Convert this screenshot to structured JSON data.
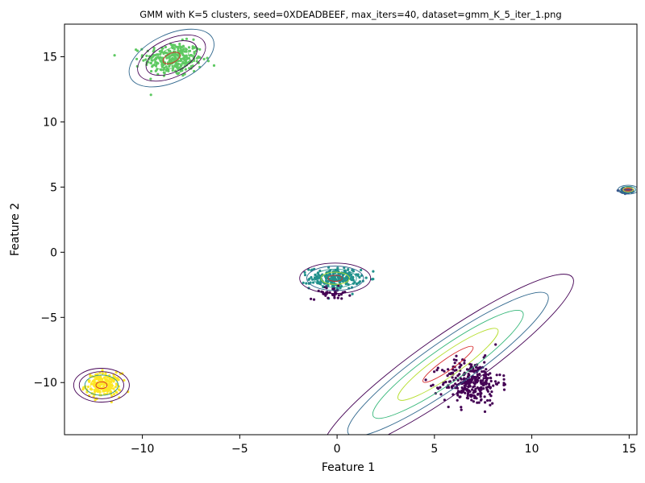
{
  "chart_data": {
    "type": "scatter",
    "title": "GMM with K=5 clusters, seed=0XDEADBEEF, max_iters=40, dataset=gmm_K_5_iter_1.png",
    "xlabel": "Feature 1",
    "ylabel": "Feature 2",
    "xlim": [
      -14,
      15.4
    ],
    "ylim": [
      -14,
      17.5
    ],
    "x_ticks": [
      -10,
      -5,
      0,
      5,
      10,
      15
    ],
    "x_tick_labels": [
      "−10",
      "−5",
      "0",
      "5",
      "10",
      "15"
    ],
    "y_ticks": [
      -10,
      -5,
      0,
      5,
      10,
      15
    ],
    "y_tick_labels": [
      "−10",
      "−5",
      "0",
      "5",
      "10",
      "15"
    ],
    "grid": false,
    "legend": "none",
    "point_clusters": [
      {
        "color": "#5ec962",
        "center": [
          -8.4,
          14.8
        ],
        "spread": [
          0.75,
          0.65
        ],
        "n": 300
      },
      {
        "color": "#fde725",
        "center": [
          -12.0,
          -10.2
        ],
        "spread": [
          0.45,
          0.45
        ],
        "n": 200
      },
      {
        "color": "#21918c",
        "center": [
          -0.1,
          -2.0
        ],
        "spread": [
          0.65,
          0.4
        ],
        "n": 220
      },
      {
        "color": "#440154",
        "center": [
          -0.3,
          -3.1
        ],
        "spread": [
          0.5,
          0.25
        ],
        "n": 40
      },
      {
        "color": "#440154",
        "center": [
          6.9,
          -10.0
        ],
        "spread": [
          0.75,
          0.85
        ],
        "n": 300
      },
      {
        "color": "#3b528b",
        "center": [
          14.9,
          4.75
        ],
        "spread": [
          0.18,
          0.12
        ],
        "n": 80
      }
    ],
    "gaussians": [
      {
        "mean": [
          -8.5,
          14.9
        ],
        "sx": 0.9,
        "sy": 0.7,
        "angle": -25,
        "levels": [
          "#31688e",
          "#440154",
          "#440154"
        ],
        "inner": [
          "#5ec962",
          "#d62728"
        ]
      },
      {
        "mean": [
          -12.1,
          -10.2
        ],
        "sx": 0.55,
        "sy": 0.5,
        "angle": 0,
        "levels": [
          "#440154",
          "#440154",
          "#21918c"
        ],
        "inner": [
          "#fde725",
          "#d62728"
        ]
      },
      {
        "mean": [
          -0.1,
          -2.0
        ],
        "sx": 0.7,
        "sy": 0.45,
        "angle": 0,
        "levels": [
          "#440154",
          "#31688e",
          "#21918c"
        ],
        "inner": [
          "#b5de2b",
          "#d62728"
        ]
      },
      {
        "mean": [
          5.7,
          -8.6
        ],
        "sx": 3.0,
        "sy": 0.85,
        "angle": -35,
        "levels": [
          "#440154",
          "#31688e",
          "#35b779"
        ],
        "inner": [
          "#b5de2b",
          "#d62728"
        ]
      },
      {
        "mean": [
          14.95,
          4.8
        ],
        "sx": 0.2,
        "sy": 0.13,
        "angle": 0,
        "levels": [
          "#31688e",
          "#21918c"
        ],
        "inner": [
          "#fde725",
          "#d62728"
        ]
      }
    ]
  }
}
